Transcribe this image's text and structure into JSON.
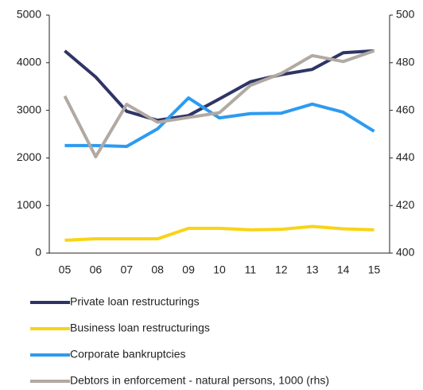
{
  "chart_data": {
    "type": "line",
    "categories": [
      "05",
      "06",
      "07",
      "08",
      "09",
      "10",
      "11",
      "12",
      "13",
      "14",
      "15"
    ],
    "ylim": [
      0,
      5000
    ],
    "yticks": [
      0,
      1000,
      2000,
      3000,
      4000,
      5000
    ],
    "y2lim": [
      400,
      500
    ],
    "y2ticks": [
      400,
      420,
      440,
      460,
      480,
      500
    ],
    "grid": false,
    "legend": "bottom",
    "series": [
      {
        "name": "Private loan restructurings",
        "color": "#2e3565",
        "values": [
          4250,
          3700,
          2980,
          2790,
          2890,
          3240,
          3600,
          3750,
          3860,
          4210,
          4250
        ]
      },
      {
        "name": "Business loan restructurings",
        "color": "#f7d417",
        "values": [
          270,
          300,
          300,
          300,
          520,
          520,
          490,
          500,
          560,
          510,
          490
        ]
      },
      {
        "name": "Corporate bankruptcies",
        "color": "#2d9bf0",
        "values": [
          2260,
          2260,
          2240,
          2610,
          3260,
          2840,
          2930,
          2940,
          3130,
          2960,
          2560
        ]
      },
      {
        "name": "Debtors in enforcement - natural persons, 1000 (rhs)",
        "color": "#b1a9a2",
        "axis": "y2",
        "values": [
          466,
          440.5,
          462.5,
          455,
          457,
          459,
          470.5,
          475.5,
          483,
          480.5,
          485
        ]
      }
    ]
  }
}
